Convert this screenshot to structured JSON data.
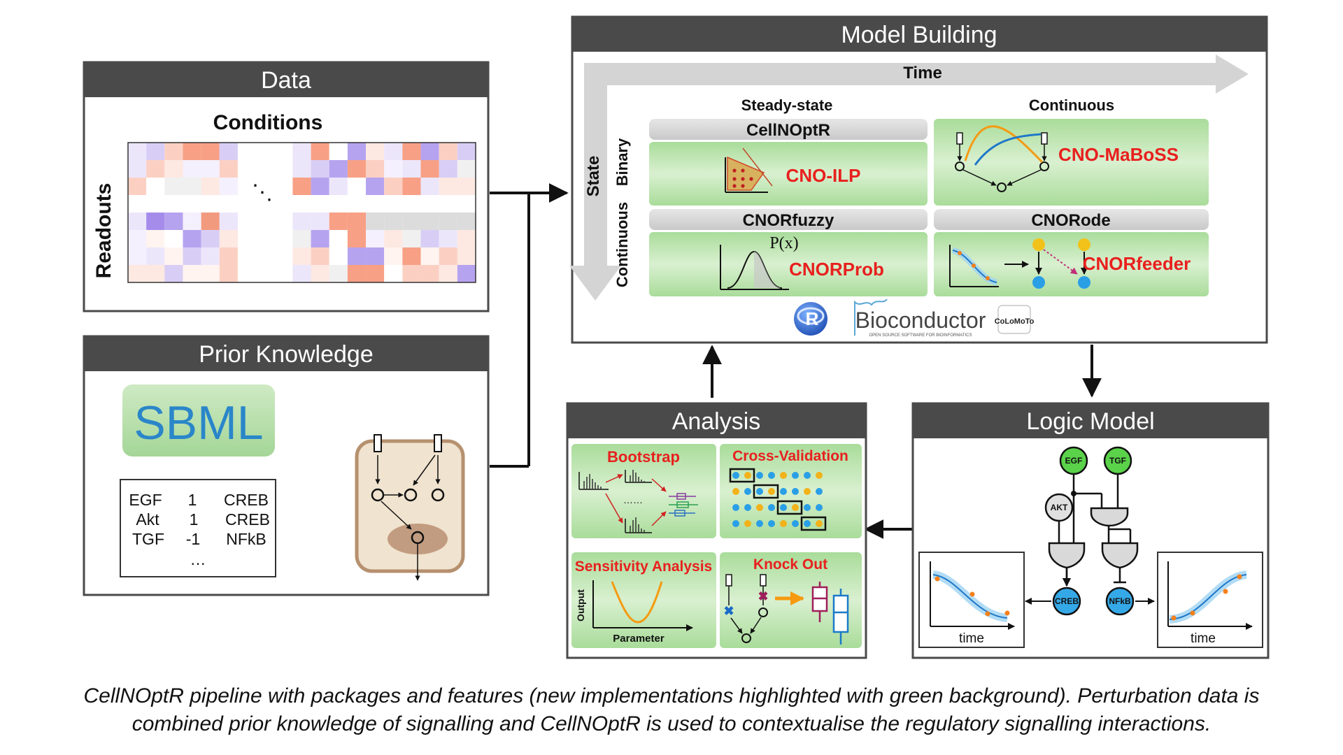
{
  "panels": {
    "data": {
      "title": "Data",
      "conditions_label": "Conditions",
      "readouts_label": "Readouts",
      "ellipsis": "⋱"
    },
    "prior": {
      "title": "Prior Knowledge",
      "sbml_logo_text": "SBML",
      "interactions": [
        {
          "source": "EGF",
          "sign": "1",
          "target": "CREB"
        },
        {
          "source": "Akt",
          "sign": "1",
          "target": "CREB"
        },
        {
          "source": "TGF",
          "sign": "-1",
          "target": "NFkB"
        }
      ],
      "more": "…"
    },
    "model": {
      "title": "Model Building",
      "time_label": "Time",
      "state_label": "State",
      "binary_label": "Binary",
      "continuous_row_label": "Continuous",
      "steady_state_label": "Steady-state",
      "continuous_col_label": "Continuous",
      "cellnoptr_label": "CellNOptR",
      "cno_ilp_label": "CNO-ILP",
      "cno_maboss_label": "CNO-MaBoSS",
      "cnorfuzzy_label": "CNORfuzzy",
      "cnorprob_label": "CNORProb",
      "px_label": "P(x)",
      "cnorode_label": "CNORode",
      "cnorfeeder_label": "CNORfeeder",
      "r_logo_text": "R",
      "bioconductor_label": "Bioconductor",
      "bioconductor_tagline": "OPEN SOURCE SOFTWARE FOR BIOINFORMATICS",
      "colomoto_logo_text": "CoLoMoTo"
    },
    "analysis": {
      "title": "Analysis",
      "bootstrap_label": "Bootstrap",
      "bootstrap_dots": "……",
      "cross_validation_label": "Cross-Validation",
      "sensitivity_label": "Sensitivity Analysis",
      "output_label": "Output",
      "parameter_label": "Parameter",
      "knockout_label": "Knock Out"
    },
    "logic": {
      "title": "Logic Model",
      "nodes": {
        "egf": "EGF",
        "tgf": "TGF",
        "akt": "AKT",
        "creb": "CREB",
        "nfkb": "NFkB"
      },
      "time_label_left": "time",
      "time_label_right": "time"
    }
  },
  "caption": {
    "line1": "CellNOptR pipeline with packages and features (new implementations highlighted with green background). Perturbation data is",
    "line2": "combined prior knowledge of signalling and CellNOptR is used to contextualise the regulatory signalling interactions."
  },
  "colors": {
    "header": "#4a4a4a",
    "green_box": "#bfe3b0",
    "grey_bar": "#d6d6d6",
    "red_text": "#e8201e",
    "node_green": "#5ad24a",
    "node_blue": "#35a9e8"
  }
}
